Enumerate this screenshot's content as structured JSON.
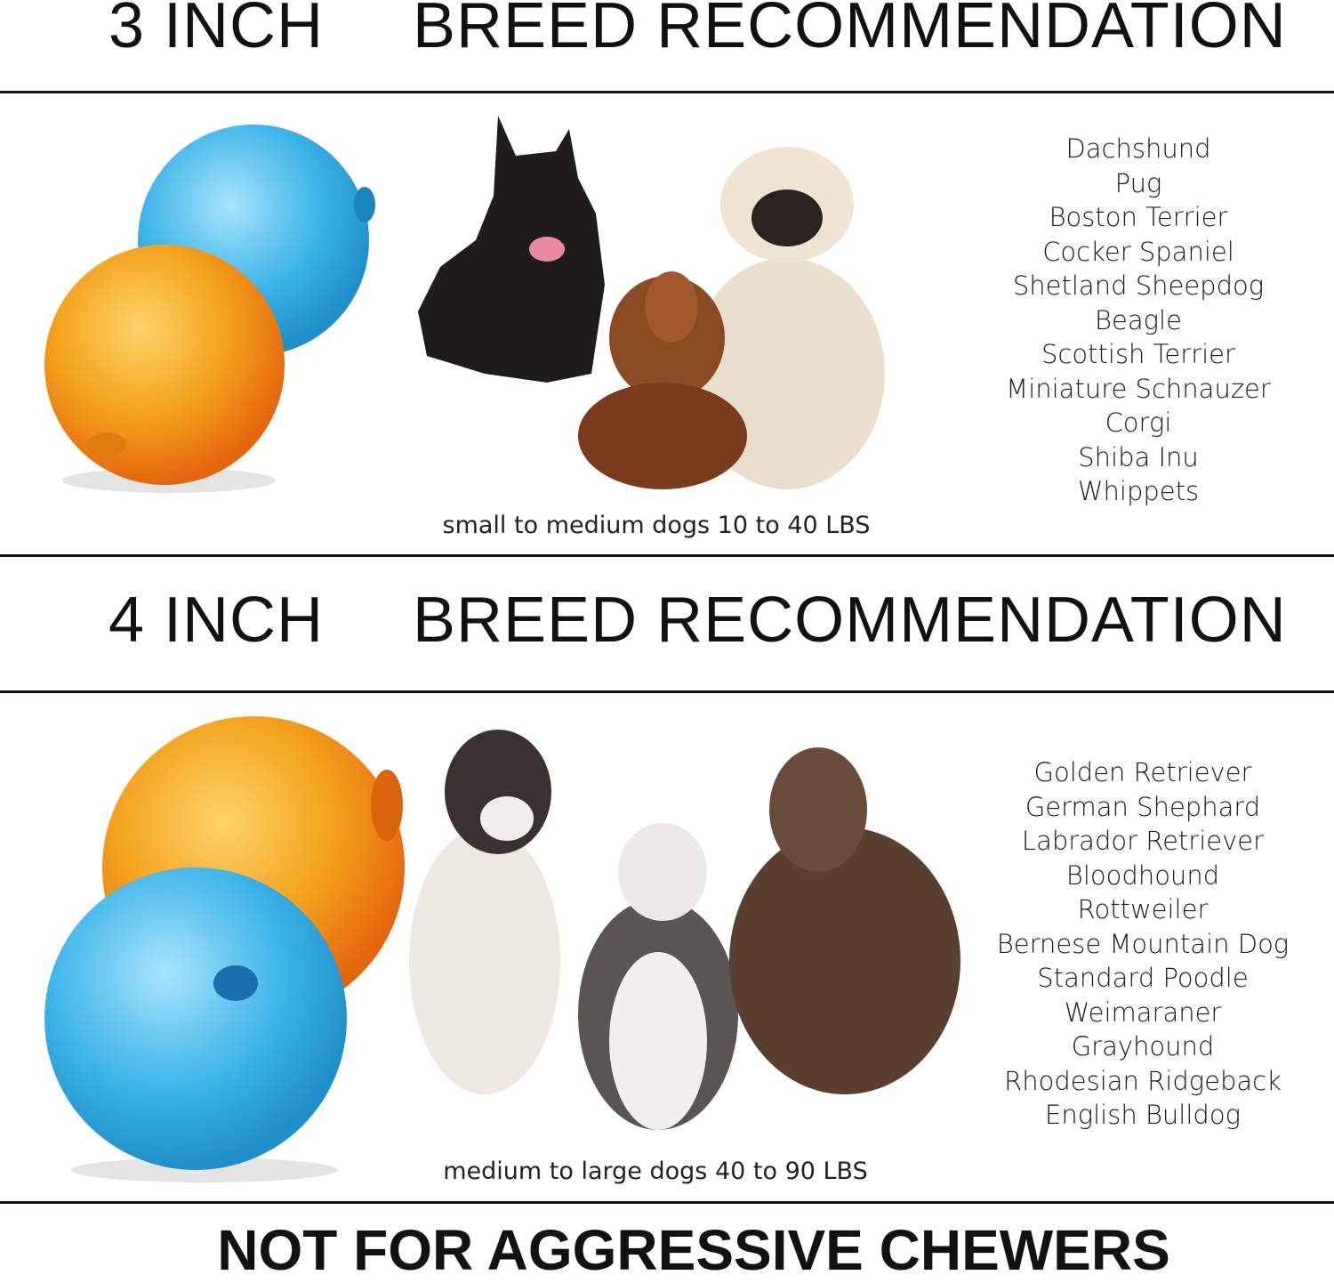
{
  "section1": {
    "size": "3 INCH",
    "title": "BREED RECOMMENDATION",
    "caption": "small to medium dogs 10 to 40 LBS",
    "breeds": [
      "Dachshund",
      "Pug",
      "Boston Terrier",
      "Cocker Spaniel",
      "Shetland Sheepdog",
      "Beagle",
      "Scottish Terrier",
      "Miniature Schnauzer",
      "Corgi",
      "Shiba Inu",
      "Whippets"
    ]
  },
  "section2": {
    "size": "4 INCH",
    "title": "BREED RECOMMENDATION",
    "caption": "medium to large dogs 40 to 90 LBS",
    "breeds": [
      "Golden Retriever",
      "German Shephard",
      "Labrador Retriever",
      "Bloodhound",
      "Rottweiler",
      "Bernese Mountain Dog",
      "Standard Poodle",
      "Weimaraner",
      "Grayhound",
      "Rhodesian Ridgeback",
      "English Bulldog"
    ]
  },
  "footer": "NOT FOR AGGRESSIVE CHEWERS",
  "colors": {
    "ball_blue": "#3bb4e8",
    "ball_orange": "#f5901e",
    "rule": "#111111"
  }
}
